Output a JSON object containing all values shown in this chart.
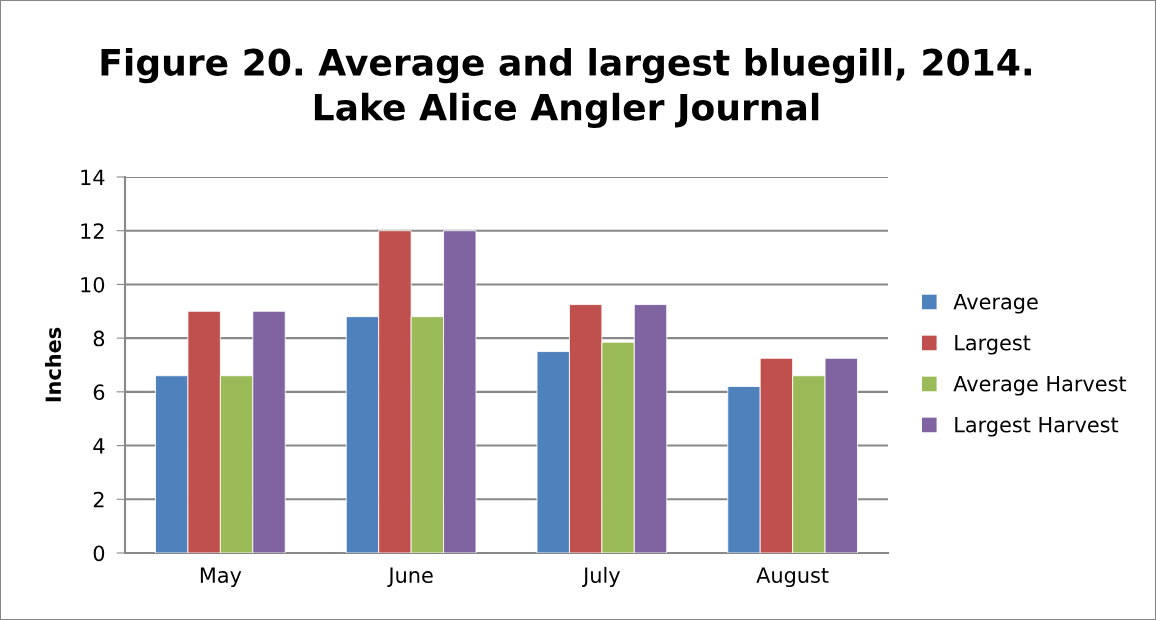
{
  "chart_data": {
    "type": "bar",
    "title": "Figure 20. Average and largest bluegill, 2014.\nLake Alice Angler Journal",
    "ylabel": "Inches",
    "categories": [
      "May",
      "June",
      "July",
      "August"
    ],
    "series": [
      {
        "name": "Average",
        "color": "#4f81bd",
        "values": [
          6.6,
          8.8,
          7.5,
          6.2
        ]
      },
      {
        "name": "Largest",
        "color": "#c0504d",
        "values": [
          9.0,
          12.0,
          9.25,
          7.25
        ]
      },
      {
        "name": "Average Harvest",
        "color": "#9bbb59",
        "values": [
          6.6,
          8.8,
          7.85,
          6.6
        ]
      },
      {
        "name": "Largest Harvest",
        "color": "#8064a2",
        "values": [
          9.0,
          12.0,
          9.25,
          7.25
        ]
      }
    ],
    "ylim": [
      0,
      14
    ],
    "yticks": [
      0,
      2,
      4,
      6,
      8,
      10,
      12,
      14
    ],
    "grid": "y",
    "legend": "right"
  }
}
